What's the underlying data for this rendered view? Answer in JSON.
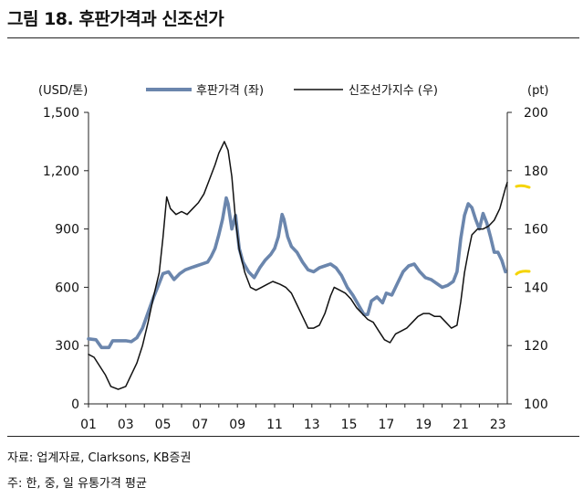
{
  "figure": {
    "title": "그림 18. 후판가격과 신조선가",
    "source": "자료: 업계자료, Clarksons, KB증권",
    "note": "주: 한, 중, 일 유통가격 평균"
  },
  "chart_data": {
    "type": "line",
    "left_unit": "(USD/톤)",
    "right_unit": "(pt)",
    "x_ticks": [
      "01",
      "03",
      "05",
      "07",
      "09",
      "11",
      "13",
      "15",
      "17",
      "19",
      "21",
      "23"
    ],
    "xlim": [
      2001,
      2023.5
    ],
    "y_left": {
      "lim": [
        0,
        1500
      ],
      "ticks": [
        "0",
        "300",
        "600",
        "900",
        "1,200",
        "1,500"
      ],
      "tick_values": [
        0,
        300,
        600,
        900,
        1200,
        1500
      ]
    },
    "y_right": {
      "lim": [
        100,
        200
      ],
      "ticks": [
        "100",
        "120",
        "140",
        "160",
        "180",
        "200"
      ],
      "tick_values": [
        100,
        120,
        140,
        160,
        180,
        200
      ]
    },
    "legend_position": "top",
    "series": [
      {
        "name": "후판가격 (좌)",
        "axis": "left",
        "color": "#6b86ad",
        "points": [
          [
            2001.0,
            335
          ],
          [
            2001.4,
            330
          ],
          [
            2001.7,
            290
          ],
          [
            2002.1,
            290
          ],
          [
            2002.3,
            325
          ],
          [
            2002.6,
            325
          ],
          [
            2003.0,
            325
          ],
          [
            2003.3,
            320
          ],
          [
            2003.6,
            340
          ],
          [
            2003.9,
            390
          ],
          [
            2004.2,
            470
          ],
          [
            2004.5,
            550
          ],
          [
            2004.8,
            620
          ],
          [
            2005.0,
            670
          ],
          [
            2005.3,
            680
          ],
          [
            2005.6,
            640
          ],
          [
            2005.9,
            670
          ],
          [
            2006.2,
            690
          ],
          [
            2006.5,
            700
          ],
          [
            2006.8,
            710
          ],
          [
            2007.1,
            720
          ],
          [
            2007.4,
            730
          ],
          [
            2007.6,
            760
          ],
          [
            2007.8,
            800
          ],
          [
            2008.0,
            870
          ],
          [
            2008.2,
            950
          ],
          [
            2008.4,
            1060
          ],
          [
            2008.5,
            1030
          ],
          [
            2008.7,
            900
          ],
          [
            2008.9,
            970
          ],
          [
            2009.1,
            800
          ],
          [
            2009.3,
            730
          ],
          [
            2009.6,
            680
          ],
          [
            2009.9,
            650
          ],
          [
            2010.2,
            700
          ],
          [
            2010.5,
            740
          ],
          [
            2010.8,
            770
          ],
          [
            2011.0,
            800
          ],
          [
            2011.2,
            860
          ],
          [
            2011.4,
            975
          ],
          [
            2011.5,
            950
          ],
          [
            2011.7,
            860
          ],
          [
            2011.9,
            810
          ],
          [
            2012.2,
            780
          ],
          [
            2012.5,
            730
          ],
          [
            2012.8,
            690
          ],
          [
            2013.1,
            680
          ],
          [
            2013.4,
            700
          ],
          [
            2013.7,
            710
          ],
          [
            2014.0,
            720
          ],
          [
            2014.3,
            700
          ],
          [
            2014.6,
            660
          ],
          [
            2014.9,
            600
          ],
          [
            2015.2,
            560
          ],
          [
            2015.5,
            510
          ],
          [
            2015.8,
            460
          ],
          [
            2016.0,
            460
          ],
          [
            2016.2,
            530
          ],
          [
            2016.5,
            550
          ],
          [
            2016.8,
            520
          ],
          [
            2017.0,
            570
          ],
          [
            2017.3,
            560
          ],
          [
            2017.6,
            620
          ],
          [
            2017.9,
            680
          ],
          [
            2018.2,
            710
          ],
          [
            2018.5,
            720
          ],
          [
            2018.8,
            680
          ],
          [
            2019.1,
            650
          ],
          [
            2019.4,
            640
          ],
          [
            2019.7,
            620
          ],
          [
            2020.0,
            600
          ],
          [
            2020.3,
            610
          ],
          [
            2020.6,
            630
          ],
          [
            2020.8,
            680
          ],
          [
            2021.0,
            850
          ],
          [
            2021.2,
            970
          ],
          [
            2021.4,
            1030
          ],
          [
            2021.6,
            1010
          ],
          [
            2021.8,
            950
          ],
          [
            2022.0,
            900
          ],
          [
            2022.2,
            980
          ],
          [
            2022.4,
            930
          ],
          [
            2022.6,
            860
          ],
          [
            2022.8,
            780
          ],
          [
            2023.0,
            780
          ],
          [
            2023.2,
            740
          ],
          [
            2023.4,
            680
          ]
        ]
      },
      {
        "name": "신조선가지수 (우)",
        "axis": "right",
        "color": "#111111",
        "points": [
          [
            2001.0,
            117
          ],
          [
            2001.3,
            116
          ],
          [
            2001.6,
            113
          ],
          [
            2001.9,
            110
          ],
          [
            2002.2,
            106
          ],
          [
            2002.6,
            105
          ],
          [
            2003.0,
            106
          ],
          [
            2003.3,
            110
          ],
          [
            2003.6,
            114
          ],
          [
            2003.9,
            120
          ],
          [
            2004.2,
            128
          ],
          [
            2004.5,
            137
          ],
          [
            2004.8,
            145
          ],
          [
            2005.0,
            157
          ],
          [
            2005.2,
            171
          ],
          [
            2005.4,
            167
          ],
          [
            2005.7,
            165
          ],
          [
            2006.0,
            166
          ],
          [
            2006.3,
            165
          ],
          [
            2006.6,
            167
          ],
          [
            2006.9,
            169
          ],
          [
            2007.2,
            172
          ],
          [
            2007.5,
            177
          ],
          [
            2007.8,
            182
          ],
          [
            2008.0,
            186
          ],
          [
            2008.3,
            190
          ],
          [
            2008.5,
            187
          ],
          [
            2008.7,
            178
          ],
          [
            2008.9,
            163
          ],
          [
            2009.1,
            153
          ],
          [
            2009.4,
            145
          ],
          [
            2009.7,
            140
          ],
          [
            2010.0,
            139
          ],
          [
            2010.3,
            140
          ],
          [
            2010.6,
            141
          ],
          [
            2010.9,
            142
          ],
          [
            2011.3,
            141
          ],
          [
            2011.6,
            140
          ],
          [
            2011.9,
            138
          ],
          [
            2012.2,
            134
          ],
          [
            2012.5,
            130
          ],
          [
            2012.8,
            126
          ],
          [
            2013.1,
            126
          ],
          [
            2013.4,
            127
          ],
          [
            2013.7,
            131
          ],
          [
            2014.0,
            137
          ],
          [
            2014.2,
            140
          ],
          [
            2014.5,
            139
          ],
          [
            2014.8,
            138
          ],
          [
            2015.1,
            136
          ],
          [
            2015.4,
            133
          ],
          [
            2015.7,
            131
          ],
          [
            2016.0,
            129
          ],
          [
            2016.3,
            128
          ],
          [
            2016.6,
            125
          ],
          [
            2016.9,
            122
          ],
          [
            2017.2,
            121
          ],
          [
            2017.5,
            124
          ],
          [
            2017.8,
            125
          ],
          [
            2018.1,
            126
          ],
          [
            2018.4,
            128
          ],
          [
            2018.7,
            130
          ],
          [
            2019.0,
            131
          ],
          [
            2019.3,
            131
          ],
          [
            2019.6,
            130
          ],
          [
            2019.9,
            130
          ],
          [
            2020.2,
            128
          ],
          [
            2020.5,
            126
          ],
          [
            2020.8,
            127
          ],
          [
            2021.0,
            135
          ],
          [
            2021.2,
            145
          ],
          [
            2021.4,
            152
          ],
          [
            2021.6,
            158
          ],
          [
            2021.9,
            160
          ],
          [
            2022.2,
            160
          ],
          [
            2022.5,
            161
          ],
          [
            2022.8,
            163
          ],
          [
            2023.1,
            167
          ],
          [
            2023.4,
            174
          ],
          [
            2023.5,
            176
          ]
        ]
      }
    ]
  }
}
